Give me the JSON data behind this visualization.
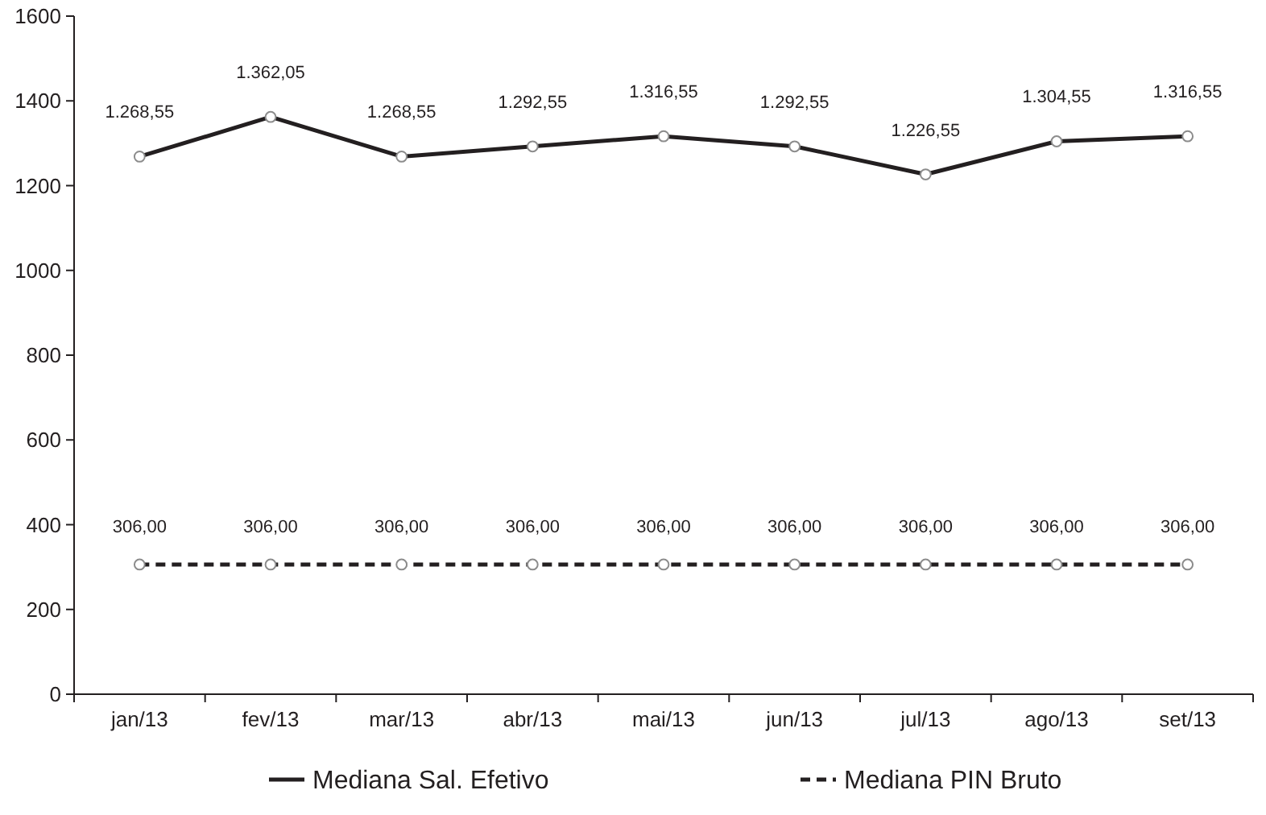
{
  "chart_data": {
    "type": "line",
    "categories": [
      "jan/13",
      "fev/13",
      "mar/13",
      "abr/13",
      "mai/13",
      "jun/13",
      "jul/13",
      "ago/13",
      "set/13"
    ],
    "series": [
      {
        "name": "Mediana Sal. Efetivo",
        "color": "#231f20",
        "line_style": "solid",
        "values": [
          1268.55,
          1362.05,
          1268.55,
          1292.55,
          1316.55,
          1292.55,
          1226.55,
          1304.55,
          1316.55
        ],
        "value_labels": [
          "1.268,55",
          "1.362,05",
          "1.268,55",
          "1.292,55",
          "1.316,55",
          "1.292,55",
          "1.226,55",
          "1.304,55",
          "1.316,55"
        ]
      },
      {
        "name": "Mediana PIN Bruto",
        "color": "#231f20",
        "line_style": "dashed",
        "values": [
          306,
          306,
          306,
          306,
          306,
          306,
          306,
          306,
          306
        ],
        "value_labels": [
          "306,00",
          "306,00",
          "306,00",
          "306,00",
          "306,00",
          "306,00",
          "306,00",
          "306,00",
          "306,00"
        ]
      }
    ],
    "ylim": [
      0,
      1600
    ],
    "yticks": [
      0,
      200,
      400,
      600,
      800,
      1000,
      1200,
      1400,
      1600
    ],
    "grid": false,
    "legend": "bottom",
    "marker": "circle"
  }
}
